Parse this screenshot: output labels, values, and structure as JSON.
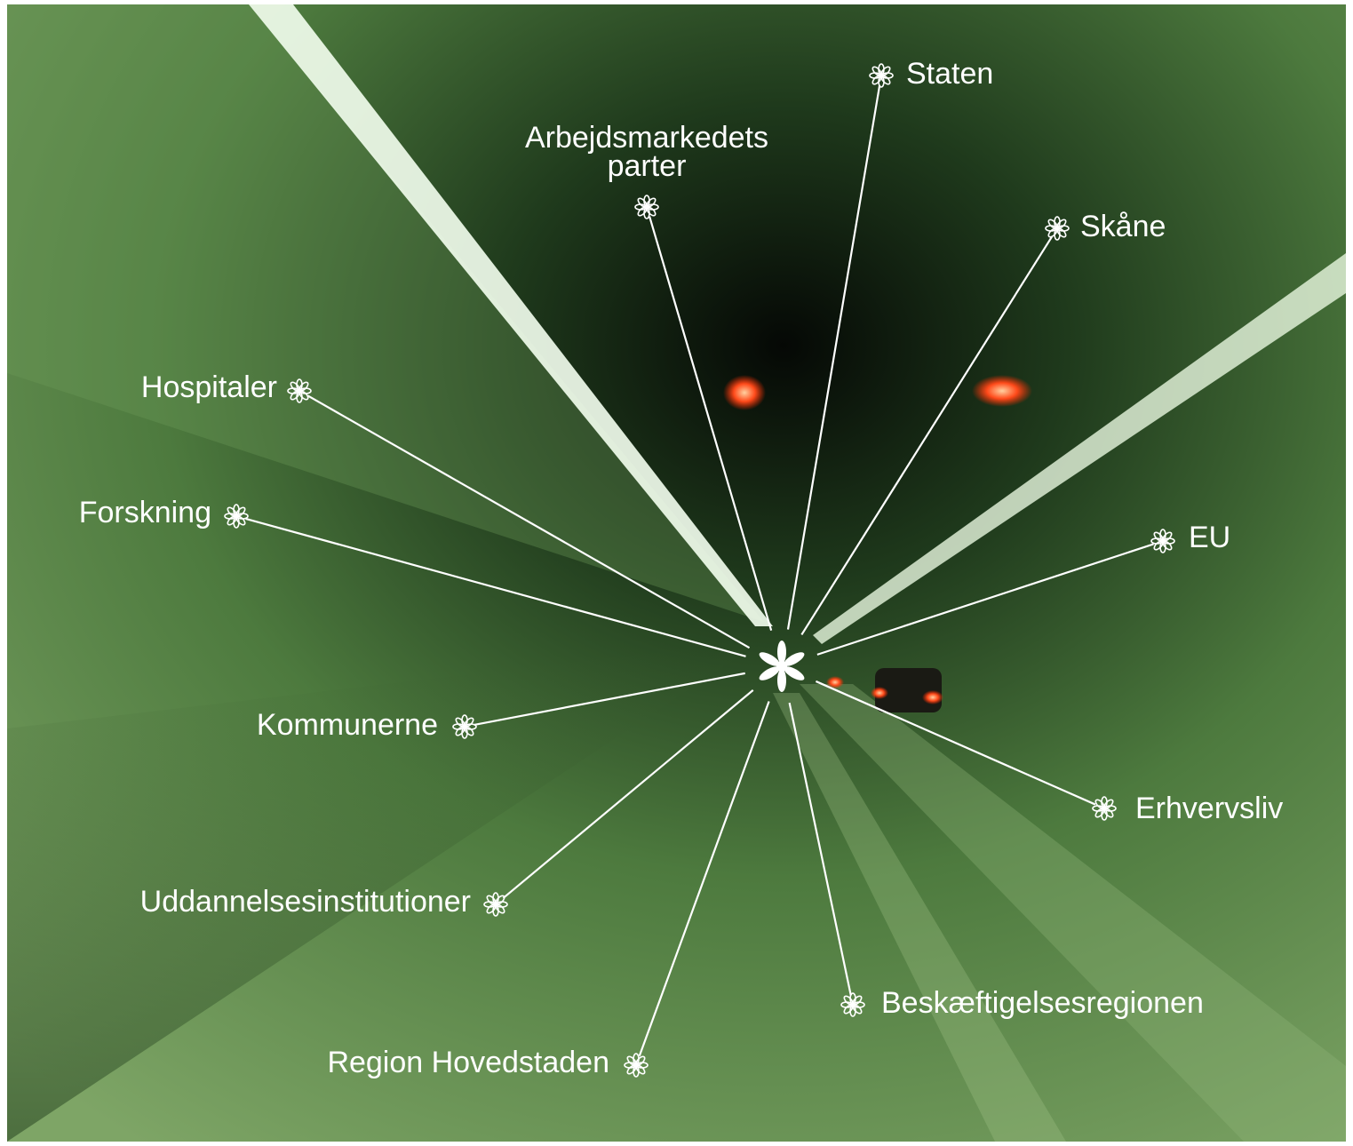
{
  "nodes": [
    {
      "lines": [
        "Staten"
      ]
    },
    {
      "lines": [
        "Arbejdsmarkedets",
        "parter"
      ]
    },
    {
      "lines": [
        "Skåne"
      ]
    },
    {
      "lines": [
        "Hospitaler"
      ]
    },
    {
      "lines": [
        "Forskning"
      ]
    },
    {
      "lines": [
        "EU"
      ]
    },
    {
      "lines": [
        "Kommunerne"
      ]
    },
    {
      "lines": [
        "Erhvervsliv"
      ]
    },
    {
      "lines": [
        "Uddannelsesinstitutioner"
      ]
    },
    {
      "lines": [
        "Beskæftigelsesregionen"
      ]
    },
    {
      "lines": [
        "Region Hovedstaden"
      ]
    }
  ]
}
